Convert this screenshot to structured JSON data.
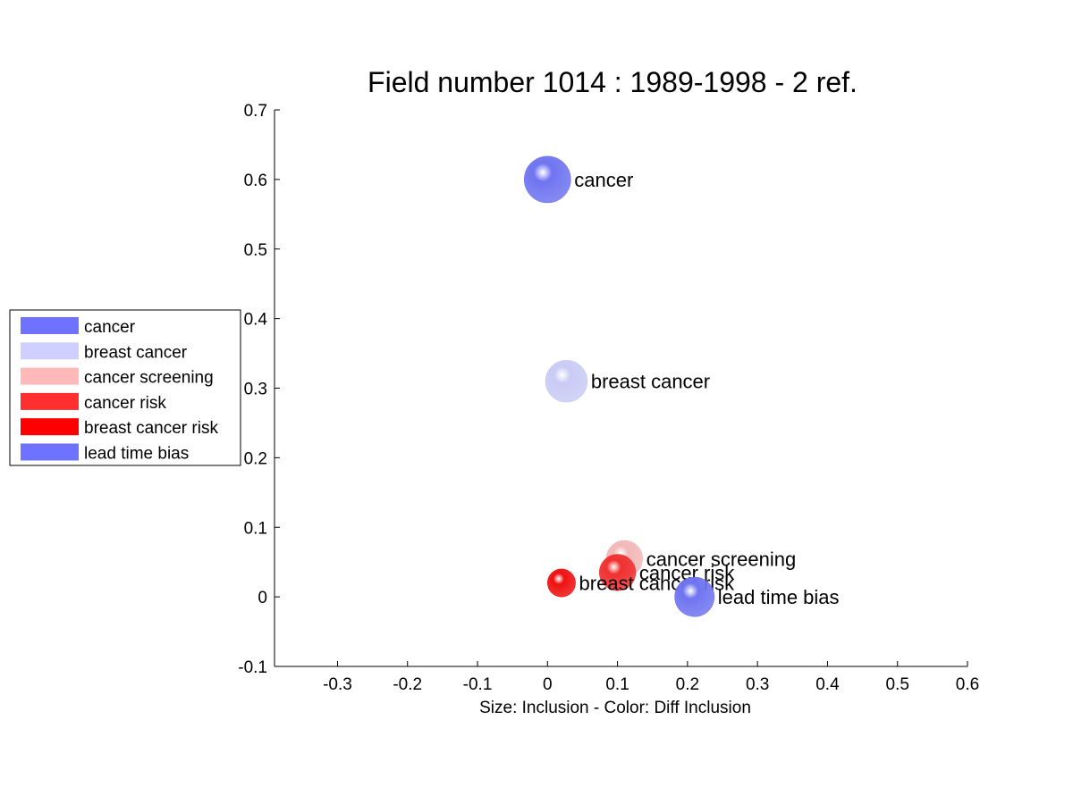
{
  "chart_data": {
    "type": "scatter",
    "title": "Field number 1014 : 1989-1998  - 2 ref.",
    "xlabel": "Size: Inclusion - Color: Diff Inclusion",
    "ylabel": "",
    "xlim": [
      -0.39,
      0.6
    ],
    "ylim": [
      -0.1,
      0.7
    ],
    "xticks": [
      "-0.3",
      "-0.2",
      "-0.1",
      "0",
      "0.1",
      "0.2",
      "0.3",
      "0.4",
      "0.5",
      "0.6"
    ],
    "yticks": [
      "-0.1",
      "0",
      "0.1",
      "0.2",
      "0.3",
      "0.4",
      "0.5",
      "0.6",
      "0.7"
    ],
    "grid": false,
    "legend_position": "left-middle",
    "points": [
      {
        "label": "cancer",
        "x": 0.0,
        "y": 0.6,
        "color": "#6f74f0",
        "size": 1.0
      },
      {
        "label": "breast cancer",
        "x": 0.027,
        "y": 0.31,
        "color": "#c9cbf5",
        "size": 0.9
      },
      {
        "label": "cancer screening",
        "x": 0.11,
        "y": 0.055,
        "color": "#f2b8b8",
        "size": 0.78
      },
      {
        "label": "cancer risk",
        "x": 0.1,
        "y": 0.035,
        "color": "#f03030",
        "size": 0.78
      },
      {
        "label": "breast cancer risk",
        "x": 0.02,
        "y": 0.02,
        "color": "#ee1111",
        "size": 0.6
      },
      {
        "label": "lead time bias",
        "x": 0.21,
        "y": 0.0,
        "color": "#6f74f0",
        "size": 0.85
      }
    ],
    "legend": [
      {
        "label": "cancer",
        "color": "#6e72ff"
      },
      {
        "label": "breast cancer",
        "color": "#cfd0ff"
      },
      {
        "label": "cancer screening",
        "color": "#ffb9b9"
      },
      {
        "label": "cancer risk",
        "color": "#ff2f2f"
      },
      {
        "label": "breast cancer risk",
        "color": "#ff0000"
      },
      {
        "label": "lead time bias",
        "color": "#6e72ff"
      }
    ]
  }
}
